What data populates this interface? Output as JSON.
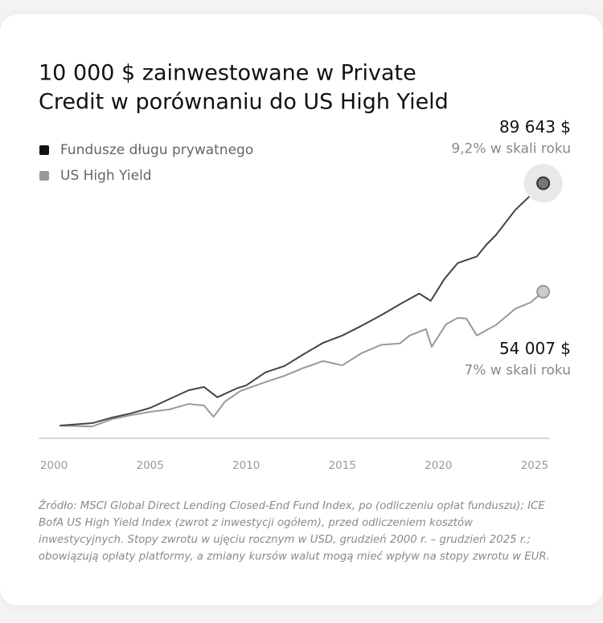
{
  "chart_data": {
    "type": "line",
    "title": [
      "10 000 $ zainwestowane w Private",
      "Credit w porównaniu do US High Yield"
    ],
    "xlim": [
      1999.2,
      2025.8
    ],
    "xticks": [
      2000,
      2005,
      2010,
      2015,
      2020,
      2025
    ],
    "ylim": [
      5800,
      95000
    ],
    "series": [
      {
        "name": "Fundusze długu prywatnego",
        "color": "#444444",
        "legend_color": "#111111",
        "x": [
          2000.3,
          2002,
          2003,
          2004,
          2005,
          2006,
          2007,
          2007.8,
          2008.5,
          2009.5,
          2010,
          2011,
          2012,
          2013,
          2014,
          2015,
          2016,
          2017,
          2018,
          2019,
          2019.6,
          2020.3,
          2021,
          2022,
          2022.5,
          2023,
          2024,
          2025.45
        ],
        "values": [
          10000,
          10800,
          12600,
          14000,
          15800,
          18700,
          21600,
          22700,
          19300,
          22200,
          23200,
          27500,
          29600,
          33500,
          37200,
          39600,
          42800,
          46200,
          49900,
          53400,
          51000,
          58100,
          63400,
          65600,
          69500,
          72700,
          80900,
          89643
        ],
        "value_labels": [
          null,
          null,
          null,
          null,
          null,
          null,
          null,
          null,
          null,
          null,
          null,
          null,
          null,
          null,
          null,
          null,
          null,
          null,
          null,
          null,
          null,
          null,
          null,
          null,
          null,
          null,
          null,
          "89 643 $"
        ],
        "annotation": "9,2% w skali roku"
      },
      {
        "name": "US High Yield",
        "color": "#999999",
        "legend_color": "#999999",
        "x": [
          2000.3,
          2002,
          2003,
          2004,
          2005,
          2006,
          2007,
          2007.8,
          2008.3,
          2008.9,
          2009.7,
          2011,
          2012,
          2013,
          2014,
          2015,
          2016,
          2017,
          2018,
          2018.5,
          2019.35,
          2019.65,
          2020.4,
          2021,
          2021.45,
          2022,
          2023,
          2024,
          2024.8,
          2025.45
        ],
        "values": [
          10000,
          9700,
          12100,
          13400,
          14500,
          15300,
          17100,
          16600,
          12900,
          17900,
          21400,
          24300,
          26400,
          29000,
          31200,
          29800,
          33800,
          36500,
          37000,
          39600,
          41700,
          35900,
          43300,
          45400,
          45200,
          39600,
          43100,
          48400,
          50500,
          54007
        ],
        "value_labels": [
          null,
          null,
          null,
          null,
          null,
          null,
          null,
          null,
          null,
          null,
          null,
          null,
          null,
          null,
          null,
          null,
          null,
          null,
          null,
          null,
          null,
          null,
          null,
          null,
          null,
          null,
          null,
          null,
          null,
          "54 007 $"
        ],
        "annotation": "7% w skali roku"
      }
    ],
    "source": "Źródło: MSCI Global Direct Lending Closed-End Fund Index, po (odliczeniu opłat funduszu); ICE BofA US High Yield Index (zwrot z inwestycji ogółem), przed odliczeniem kosztów inwestycyjnych. Stopy zwrotu w ujęciu rocznym w USD, grudzień 2000 r. – grudzień 2025 r.; obowiązują opłaty platformy, a zmiany kursów walut mogą mieć wpływ na stopy zwrotu w EUR."
  }
}
